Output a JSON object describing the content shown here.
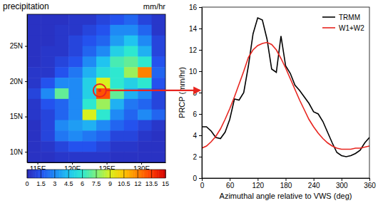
{
  "chart_data": [
    {
      "type": "heatmap",
      "title": "precipitation",
      "subtitle": "mm/hr",
      "x": [
        114.5,
        116.5,
        118.5,
        120.5,
        122.5,
        124.5,
        126.5,
        128.5,
        130.5,
        132.5
      ],
      "y": [
        28.75,
        27.25,
        25.75,
        24.25,
        22.75,
        21.25,
        19.75,
        18.25,
        16.75,
        15.25,
        13.75,
        12.25,
        10.75,
        9.25
      ],
      "values": [
        [
          0.3,
          0.3,
          0.3,
          0.5,
          0.5,
          1,
          1.5,
          2,
          1,
          0.5
        ],
        [
          0.3,
          0.3,
          0.5,
          0.5,
          1,
          1.5,
          3,
          3,
          2,
          0.5
        ],
        [
          0.3,
          0.3,
          0.5,
          1,
          1.5,
          2,
          3.5,
          4.5,
          3,
          1
        ],
        [
          0.3,
          0.5,
          0.5,
          1,
          2,
          3,
          5,
          6,
          4,
          1
        ],
        [
          0.3,
          0.5,
          1,
          1.5,
          3,
          4.5,
          6.5,
          7,
          6,
          1.5
        ],
        [
          0.5,
          0.5,
          1.5,
          2.5,
          4,
          5.5,
          6,
          8,
          12,
          2
        ],
        [
          0.5,
          1.5,
          3,
          3,
          5,
          9,
          6,
          5,
          6,
          1.5
        ],
        [
          1,
          3,
          7,
          3,
          5,
          13,
          7,
          4,
          3,
          1
        ],
        [
          0.5,
          1.5,
          2,
          3,
          6,
          8,
          4,
          2.5,
          2,
          1
        ],
        [
          0.5,
          1,
          2,
          3,
          9,
          6,
          3,
          2,
          3,
          2
        ],
        [
          0.3,
          1,
          3,
          3.5,
          4,
          3,
          2,
          1.5,
          1,
          0.5
        ],
        [
          0.3,
          1,
          2.5,
          3,
          2.5,
          2,
          1,
          1,
          0.5,
          0.3
        ],
        [
          0.3,
          0.5,
          1,
          1.5,
          1.5,
          1,
          0.5,
          0.5,
          0.3,
          0.3
        ],
        [
          0.3,
          0.3,
          0.5,
          0.5,
          0.5,
          0.5,
          0.3,
          0.3,
          0.3,
          0.3
        ]
      ],
      "xlim": [
        113.5,
        133.5
      ],
      "ylim": [
        8.5,
        29.5
      ],
      "xticks": [
        {
          "value": 115,
          "label": "115E"
        },
        {
          "value": 120,
          "label": "120E"
        },
        {
          "value": 125,
          "label": "125E"
        },
        {
          "value": 130,
          "label": "130E"
        }
      ],
      "yticks": [
        {
          "value": 10,
          "label": "10N"
        },
        {
          "value": 15,
          "label": "15N"
        },
        {
          "value": 20,
          "label": "20N"
        },
        {
          "value": 25,
          "label": "25N"
        }
      ],
      "colorbar": {
        "range": [
          0,
          15
        ],
        "ticks": [
          0,
          1.5,
          3,
          4.5,
          6,
          7.5,
          9,
          10.5,
          12,
          13.5,
          15
        ]
      },
      "storm_center": [
        124,
        18.7
      ]
    },
    {
      "type": "line",
      "x": [
        0,
        10,
        20,
        30,
        40,
        50,
        60,
        70,
        80,
        90,
        100,
        110,
        120,
        130,
        140,
        150,
        160,
        170,
        180,
        190,
        200,
        210,
        220,
        230,
        240,
        250,
        260,
        270,
        280,
        290,
        300,
        310,
        320,
        330,
        340,
        350,
        360
      ],
      "series": [
        {
          "name": "TRMM",
          "color": "#000000",
          "values": [
            4.8,
            4.8,
            4.4,
            3.8,
            3.7,
            4.3,
            5.5,
            7.4,
            7.3,
            8.0,
            10.5,
            13.5,
            15.0,
            14.8,
            13.0,
            10.2,
            9.9,
            13.3,
            10.5,
            9.8,
            8.7,
            8.2,
            7.6,
            7.0,
            6.2,
            6.0,
            5.3,
            4.3,
            3.3,
            2.4,
            2.1,
            2.0,
            2.1,
            2.3,
            2.6,
            3.3,
            3.8
          ]
        },
        {
          "name": "W1+W2",
          "color": "#e8251f",
          "values": [
            2.8,
            3.0,
            3.4,
            3.9,
            4.6,
            5.5,
            6.5,
            7.6,
            8.8,
            10.0,
            11.3,
            12.0,
            12.4,
            12.6,
            12.7,
            12.5,
            12.0,
            11.2,
            10.3,
            9.3,
            8.3,
            7.3,
            6.4,
            5.5,
            4.8,
            4.2,
            3.7,
            3.3,
            3.0,
            2.8,
            2.7,
            2.7,
            2.7,
            2.8,
            2.8,
            2.9,
            3.0
          ]
        }
      ],
      "xlabel": "Azimuthal angle relative to VWS (deg)",
      "ylabel": "PRCP (mm/hr)",
      "xlim": [
        0,
        360
      ],
      "ylim": [
        0,
        16
      ],
      "xticks": [
        0,
        60,
        120,
        180,
        240,
        300,
        360
      ],
      "yticks": [
        0,
        2,
        4,
        6,
        8,
        10,
        12,
        14,
        16
      ],
      "grid": false,
      "legend": "upper right"
    }
  ]
}
